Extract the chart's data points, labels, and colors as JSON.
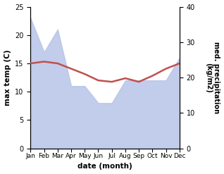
{
  "months": [
    "Jan",
    "Feb",
    "Mar",
    "Apr",
    "May",
    "Jun",
    "Jul",
    "Aug",
    "Sep",
    "Oct",
    "Nov",
    "Dec"
  ],
  "month_indices": [
    1,
    2,
    3,
    4,
    5,
    6,
    7,
    8,
    9,
    10,
    11,
    12
  ],
  "max_temp": [
    24.0,
    24.5,
    24.0,
    22.5,
    21.0,
    19.2,
    18.8,
    19.8,
    18.8,
    20.5,
    22.5,
    24.0
  ],
  "precipitation": [
    23.0,
    17.0,
    21.0,
    11.0,
    11.0,
    8.0,
    8.0,
    12.0,
    12.0,
    12.0,
    12.0,
    16.0
  ],
  "temp_color": "#c0504d",
  "precip_fill_color": "#b8c4e8",
  "ylabel_left": "max temp (C)",
  "ylabel_right": "med. precipitation\n(kg/m2)",
  "xlabel": "date (month)",
  "ylim_left": [
    0,
    25
  ],
  "ylim_right": [
    0,
    40
  ],
  "temp_linewidth": 1.8,
  "bg_color": "#ffffff"
}
